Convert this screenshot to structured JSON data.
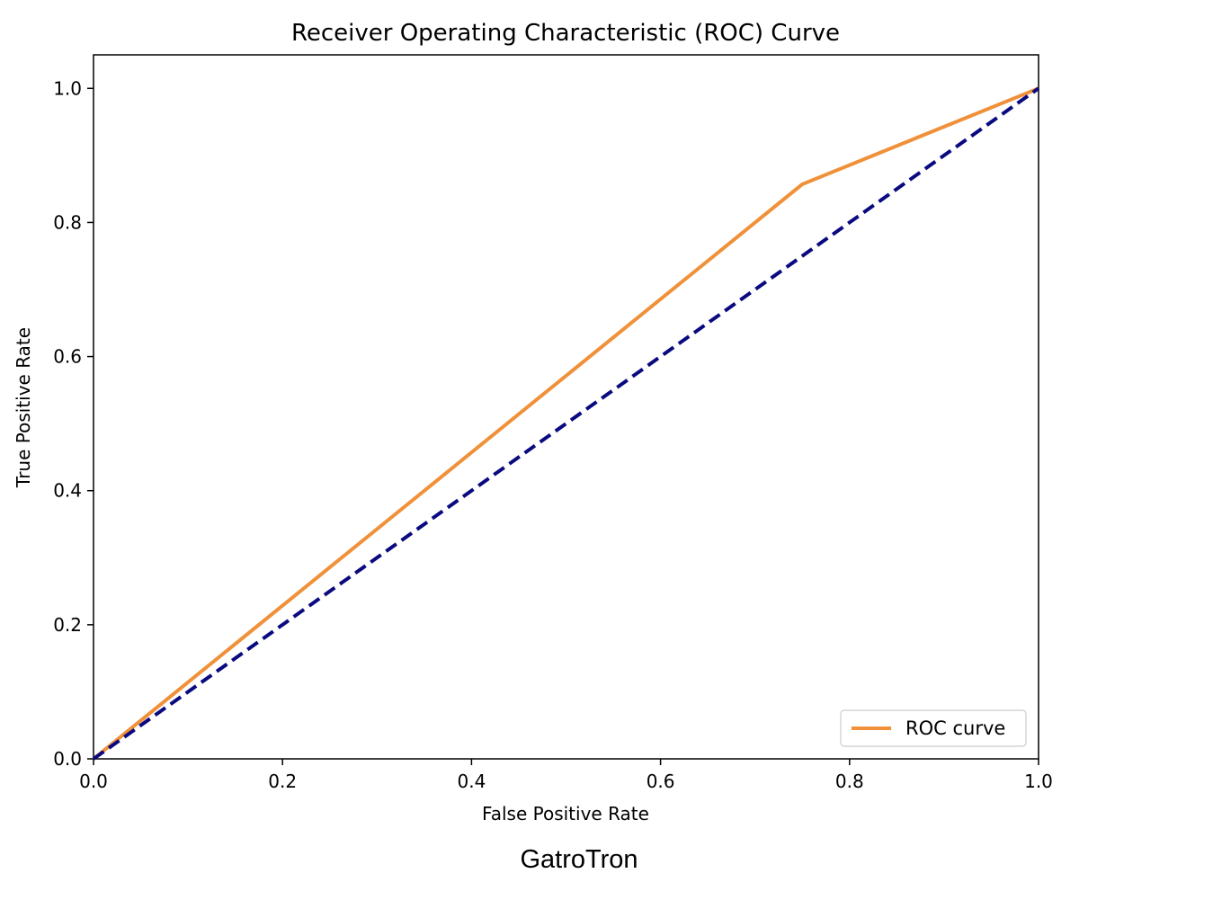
{
  "caption": "GatroTron",
  "chart_data": {
    "type": "line",
    "title": "Receiver Operating Characteristic (ROC) Curve",
    "xlabel": "False Positive Rate",
    "ylabel": "True Positive Rate",
    "xlim": [
      0.0,
      1.0
    ],
    "ylim": [
      0.0,
      1.0
    ],
    "x_ticks": [
      "0.0",
      "0.2",
      "0.4",
      "0.6",
      "0.8",
      "1.0"
    ],
    "y_ticks": [
      "0.0",
      "0.2",
      "0.4",
      "0.6",
      "0.8",
      "1.0"
    ],
    "grid": false,
    "legend_position": "lower-right",
    "series": [
      {
        "name": "ROC curve",
        "color": "#f0913a",
        "style": "solid",
        "x": [
          0.0,
          0.75,
          1.0
        ],
        "y": [
          0.0,
          0.857,
          1.0
        ]
      },
      {
        "color": "#0a0a80",
        "style": "dashed",
        "x": [
          0.0,
          1.0
        ],
        "y": [
          0.0,
          1.0
        ]
      }
    ]
  }
}
